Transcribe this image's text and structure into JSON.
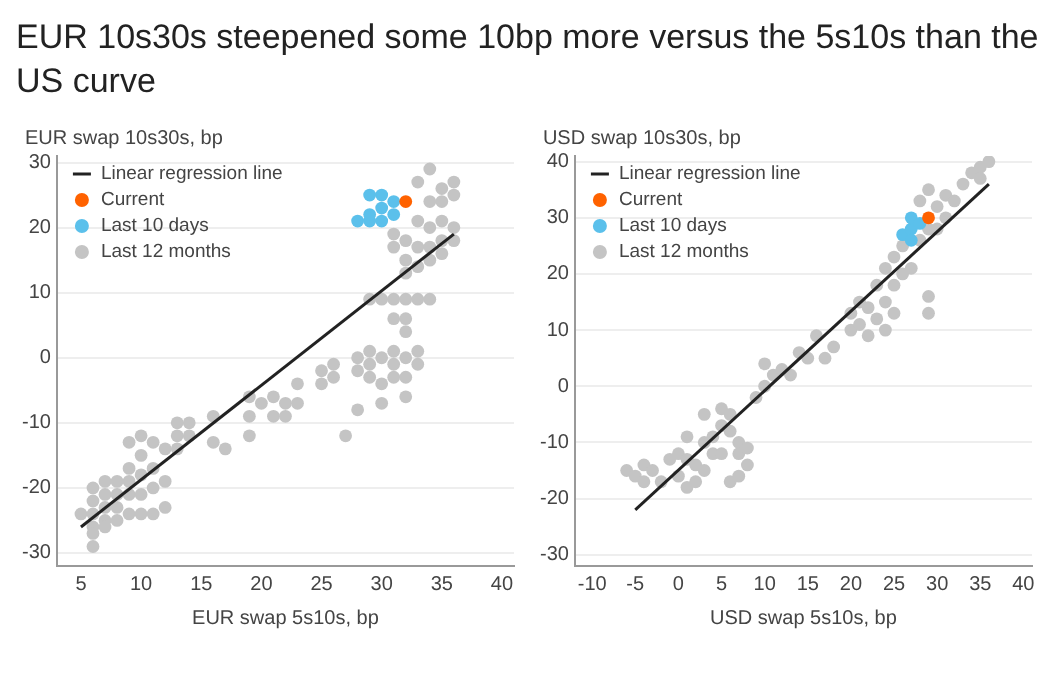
{
  "chart_data": [
    {
      "type": "scatter",
      "title": "EUR 10s30s steepened some 10bp more versus the 5s10s than the US curve",
      "ylabel": "EUR swap 10s30s, bp",
      "xlabel": "EUR swap 5s10s, bp",
      "xlim": [
        3,
        41
      ],
      "xticks": [
        5,
        10,
        15,
        20,
        25,
        30,
        35,
        40
      ],
      "ylim": [
        -32,
        31
      ],
      "yticks": [
        -30,
        -20,
        -10,
        0,
        10,
        20,
        30
      ],
      "grid": "y",
      "legend": "top left",
      "marker": "circle",
      "series": [
        {
          "name": "Linear regression line",
          "type": "line",
          "line_style": "solid",
          "color": "#222222",
          "marker": "none",
          "x": [
            5,
            36
          ],
          "values": [
            -26,
            19
          ]
        },
        {
          "name": "Current",
          "color": "#ff6200",
          "x": [
            32
          ],
          "values": [
            24
          ]
        },
        {
          "name": "Last 10 days",
          "color": "#5bc0eb",
          "x": [
            28,
            29,
            29,
            29,
            30,
            30,
            30,
            31,
            31
          ],
          "values": [
            21,
            21,
            22,
            25,
            25,
            23,
            21,
            24,
            22
          ]
        },
        {
          "name": "Last 12 months",
          "color": "#c4c4c4",
          "x": [
            5,
            6,
            6,
            6,
            6,
            6,
            6,
            7,
            7,
            7,
            7,
            7,
            8,
            8,
            8,
            8,
            9,
            9,
            9,
            9,
            9,
            10,
            10,
            10,
            10,
            10,
            11,
            11,
            11,
            11,
            12,
            12,
            12,
            13,
            13,
            13,
            14,
            14,
            16,
            16,
            17,
            19,
            19,
            19,
            20,
            21,
            21,
            22,
            22,
            23,
            23,
            25,
            25,
            26,
            26,
            27,
            28,
            28,
            28,
            29,
            29,
            29,
            29,
            30,
            30,
            30,
            30,
            31,
            31,
            31,
            31,
            31,
            31,
            31,
            32,
            32,
            32,
            32,
            32,
            32,
            32,
            32,
            32,
            33,
            33,
            33,
            33,
            33,
            33,
            33,
            34,
            34,
            34,
            34,
            34,
            34,
            35,
            35,
            35,
            35,
            35,
            36,
            36,
            36,
            36
          ],
          "values": [
            -24,
            -20,
            -22,
            -24,
            -26,
            -27,
            -29,
            -19,
            -21,
            -23,
            -25,
            -26,
            -19,
            -21,
            -23,
            -25,
            -13,
            -17,
            -19,
            -21,
            -24,
            -12,
            -15,
            -18,
            -21,
            -24,
            -13,
            -17,
            -20,
            -24,
            -14,
            -19,
            -23,
            -10,
            -12,
            -14,
            -10,
            -12,
            -9,
            -13,
            -14,
            -6,
            -9,
            -12,
            -7,
            -6,
            -9,
            -7,
            -9,
            -4,
            -7,
            -2,
            -4,
            -1,
            -3,
            -12,
            0,
            -2,
            -8,
            1,
            -1,
            -3,
            9,
            9,
            0,
            -4,
            -7,
            1,
            -1,
            -3,
            6,
            9,
            17,
            19,
            15,
            13,
            9,
            4,
            6,
            0,
            -3,
            -6,
            18,
            17,
            14,
            9,
            1,
            -1,
            21,
            27,
            17,
            15,
            9,
            29,
            24,
            20,
            16,
            26,
            24,
            21,
            18,
            27,
            25,
            20,
            18
          ]
        }
      ]
    },
    {
      "type": "scatter",
      "ylabel": "USD swap 10s30s, bp",
      "xlabel": "USD swap 5s10s, bp",
      "xlim": [
        -12,
        41
      ],
      "xticks": [
        -10,
        -5,
        0,
        5,
        10,
        15,
        20,
        25,
        30,
        35,
        40
      ],
      "ylim": [
        -32,
        41
      ],
      "yticks": [
        -30,
        -20,
        -10,
        0,
        10,
        20,
        30,
        40
      ],
      "grid": "y",
      "legend": "top left",
      "marker": "circle",
      "series": [
        {
          "name": "Linear regression line",
          "type": "line",
          "line_style": "solid",
          "color": "#222222",
          "marker": "none",
          "x": [
            -5,
            36
          ],
          "values": [
            -22,
            36
          ]
        },
        {
          "name": "Current",
          "color": "#ff6200",
          "x": [
            29
          ],
          "values": [
            30
          ]
        },
        {
          "name": "Last 10 days",
          "color": "#5bc0eb",
          "x": [
            26,
            27,
            27,
            28,
            27
          ],
          "values": [
            27,
            28,
            30,
            29,
            26
          ]
        },
        {
          "name": "Last 12 months",
          "color": "#c4c4c4",
          "x": [
            -6,
            -5,
            -4,
            -3,
            -2,
            -1,
            0,
            1,
            2,
            -4,
            0,
            1,
            3,
            2,
            4,
            3,
            4,
            5,
            5,
            6,
            6,
            7,
            7,
            8,
            5,
            3,
            1,
            6,
            7,
            8,
            9,
            10,
            10,
            11,
            12,
            13,
            14,
            15,
            16,
            17,
            18,
            20,
            20,
            21,
            21,
            22,
            22,
            23,
            23,
            24,
            24,
            24,
            25,
            25,
            25,
            26,
            26,
            27,
            28,
            28,
            29,
            29,
            29,
            29,
            30,
            30,
            31,
            32,
            33,
            34,
            35,
            35,
            36,
            31
          ],
          "values": [
            -15,
            -16,
            -14,
            -15,
            -17,
            -13,
            -16,
            -18,
            -14,
            -17,
            -12,
            -13,
            -15,
            -17,
            -12,
            -10,
            -9,
            -7,
            -4,
            -5,
            -8,
            -10,
            -12,
            -11,
            -12,
            -5,
            -9,
            -17,
            -16,
            -14,
            -2,
            0,
            4,
            2,
            3,
            2,
            6,
            5,
            9,
            5,
            7,
            10,
            13,
            11,
            15,
            9,
            14,
            12,
            18,
            10,
            15,
            21,
            13,
            18,
            23,
            20,
            25,
            21,
            33,
            26,
            28,
            35,
            16,
            13,
            32,
            28,
            34,
            33,
            36,
            38,
            39,
            37,
            40,
            30
          ]
        }
      ]
    }
  ]
}
